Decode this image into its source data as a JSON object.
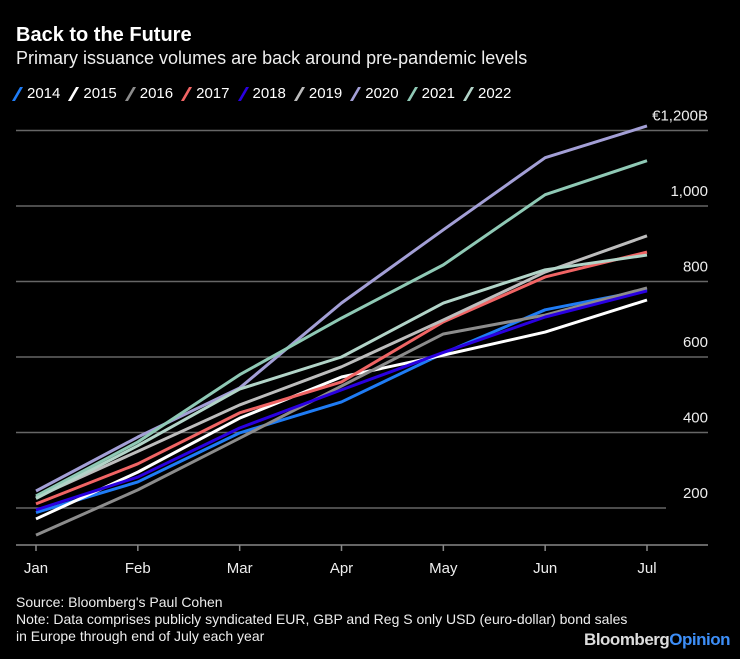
{
  "chart_data": {
    "type": "line",
    "title": "Back to the Future",
    "subtitle": "Primary issuance volumes are back around pre-pandemic levels",
    "categories": [
      "Jan",
      "Feb",
      "Mar",
      "Apr",
      "May",
      "Jun",
      "Jul"
    ],
    "y_ticks": [
      {
        "value": 200,
        "label": "200"
      },
      {
        "value": 400,
        "label": "400"
      },
      {
        "value": 600,
        "label": "600"
      },
      {
        "value": 800,
        "label": "800"
      },
      {
        "value": 1000,
        "label": "1,000"
      },
      {
        "value": 1200,
        "label": "€1,200B"
      }
    ],
    "ylim": [
      100,
      1200
    ],
    "grid": true,
    "legend_position": "top",
    "series": [
      {
        "name": "2014",
        "color": "#1f7cf5",
        "values": [
          188,
          269,
          399,
          481,
          610,
          725,
          778
        ]
      },
      {
        "name": "2015",
        "color": "#ffffff",
        "values": [
          171,
          295,
          438,
          547,
          605,
          666,
          751
        ]
      },
      {
        "name": "2016",
        "color": "#8c8c8c",
        "values": [
          128,
          248,
          385,
          523,
          661,
          711,
          783
        ]
      },
      {
        "name": "2017",
        "color": "#f06464",
        "values": [
          211,
          317,
          452,
          534,
          693,
          812,
          878
        ]
      },
      {
        "name": "2018",
        "color": "#2a00e0",
        "values": [
          195,
          282,
          412,
          513,
          612,
          706,
          775
        ]
      },
      {
        "name": "2019",
        "color": "#bdbdbd",
        "values": [
          228,
          350,
          473,
          574,
          698,
          825,
          921
        ]
      },
      {
        "name": "2020",
        "color": "#a39fd6",
        "values": [
          245,
          388,
          518,
          743,
          937,
          1128,
          1212
        ]
      },
      {
        "name": "2021",
        "color": "#8fc9b5",
        "values": [
          232,
          375,
          553,
          703,
          844,
          1030,
          1120
        ]
      },
      {
        "name": "2022",
        "color": "#b2d4c8",
        "values": [
          225,
          365,
          515,
          600,
          743,
          831,
          870
        ]
      }
    ]
  },
  "notes": {
    "source": "Source: Bloomberg's Paul Cohen",
    "note": "Note: Data comprises publicly syndicated EUR, GBP and Reg S only USD (euro-dollar) bond sales in Europe through end of July each year"
  },
  "logo": {
    "part1": "Bloomberg",
    "part2": "Opinion"
  }
}
